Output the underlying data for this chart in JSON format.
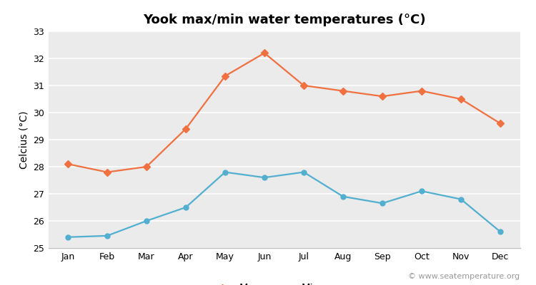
{
  "title": "Yook max/min water temperatures (°C)",
  "ylabel": "Celcius (°C)",
  "months": [
    "Jan",
    "Feb",
    "Mar",
    "Apr",
    "May",
    "Jun",
    "Jul",
    "Aug",
    "Sep",
    "Oct",
    "Nov",
    "Dec"
  ],
  "max_temps": [
    28.1,
    27.8,
    28.0,
    29.4,
    31.35,
    32.2,
    31.0,
    30.8,
    30.6,
    30.8,
    30.5,
    29.6
  ],
  "min_temps": [
    25.4,
    25.45,
    26.0,
    26.5,
    27.8,
    27.6,
    27.8,
    26.9,
    26.65,
    27.1,
    26.8,
    25.6
  ],
  "max_color": "#f07040",
  "min_color": "#52afd0",
  "fig_bg_color": "#ffffff",
  "plot_bg_color": "#ebebeb",
  "outer_bg_color": "#f5f5f5",
  "ylim": [
    25,
    33
  ],
  "yticks": [
    25,
    26,
    27,
    28,
    29,
    30,
    31,
    32,
    33
  ],
  "grid_color": "#ffffff",
  "watermark": "© www.seatemperature.org",
  "legend_labels": [
    "Max",
    "Min"
  ],
  "title_fontsize": 13,
  "label_fontsize": 10,
  "tick_fontsize": 9,
  "watermark_fontsize": 8,
  "marker_max": "D",
  "marker_min": "o",
  "markersize": 5,
  "linewidth": 1.6
}
